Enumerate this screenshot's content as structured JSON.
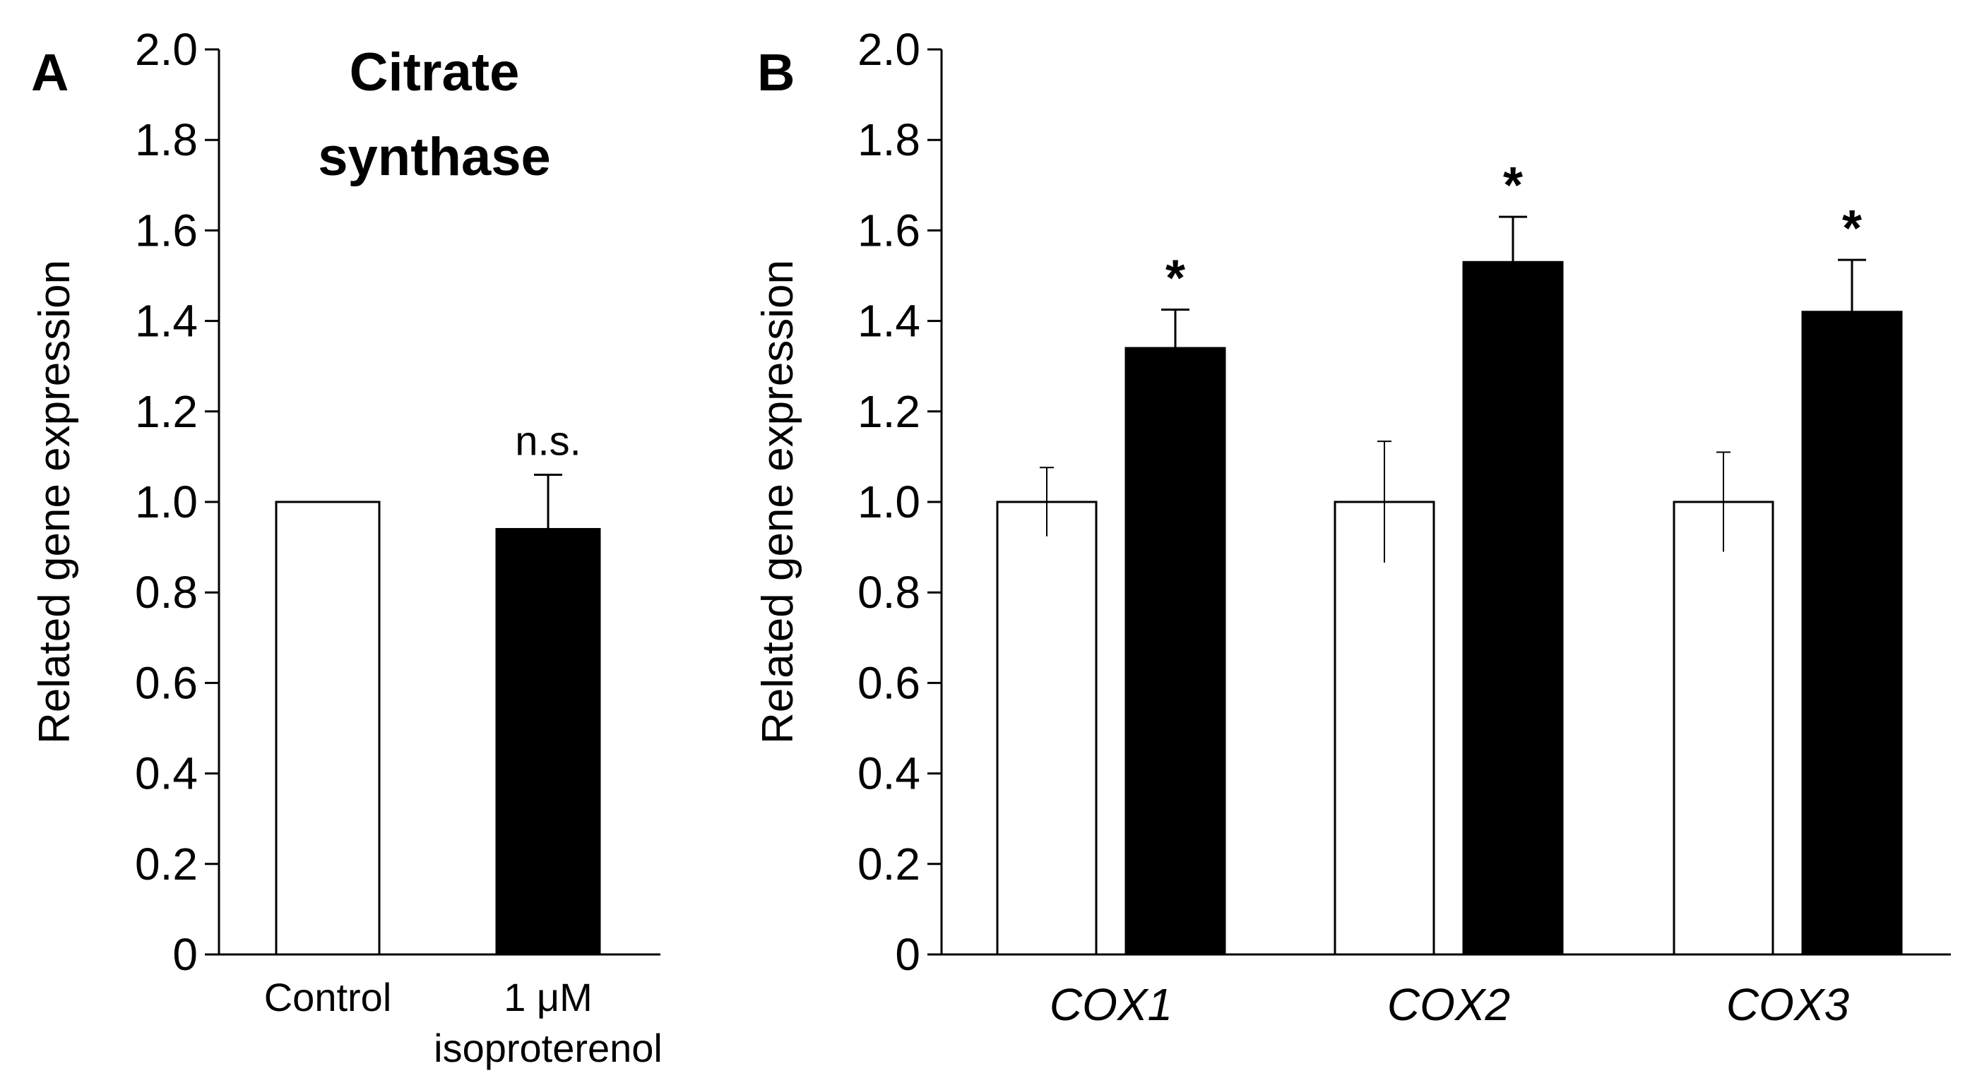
{
  "chart_data": [
    {
      "panel": "A",
      "type": "bar",
      "title": "Citrate synthase",
      "title_lines": [
        "Citrate",
        "synthase"
      ],
      "xlabel": "",
      "ylabel": "Related gene expression",
      "ylim": [
        0,
        2.0
      ],
      "yticks": [
        "0",
        "0.2",
        "0.4",
        "0.6",
        "0.8",
        "1.0",
        "1.2",
        "1.4",
        "1.6",
        "1.8",
        "2.0"
      ],
      "categories": [
        "Control",
        "1 μM isoproterenol"
      ],
      "category_lines": [
        [
          "Control"
        ],
        [
          "1 μM",
          "isoproterenol"
        ]
      ],
      "values": [
        1.0,
        0.94
      ],
      "errors": [
        0.0,
        0.12
      ],
      "colors": [
        "#ffffff",
        "#000000"
      ],
      "annotations": [
        "",
        "n.s."
      ]
    },
    {
      "panel": "B",
      "type": "bar",
      "title": "",
      "xlabel": "",
      "ylabel": "Related gene expression",
      "ylim": [
        0,
        2.0
      ],
      "yticks": [
        "0",
        "0.2",
        "0.4",
        "0.6",
        "0.8",
        "1.0",
        "1.2",
        "1.4",
        "1.6",
        "1.8",
        "2.0"
      ],
      "categories": [
        "COX1",
        "COX2",
        "COX3"
      ],
      "series": [
        {
          "name": "Control",
          "color": "#ffffff",
          "values": [
            1.0,
            1.0,
            1.0
          ],
          "errors": [
            0.076,
            0.134,
            0.11
          ],
          "annotations": [
            "",
            "",
            ""
          ]
        },
        {
          "name": "1 μM isoproterenol",
          "color": "#000000",
          "values": [
            1.34,
            1.53,
            1.42
          ],
          "errors": [
            0.085,
            0.1,
            0.115
          ],
          "annotations": [
            "*",
            "*",
            "*"
          ]
        }
      ]
    }
  ]
}
